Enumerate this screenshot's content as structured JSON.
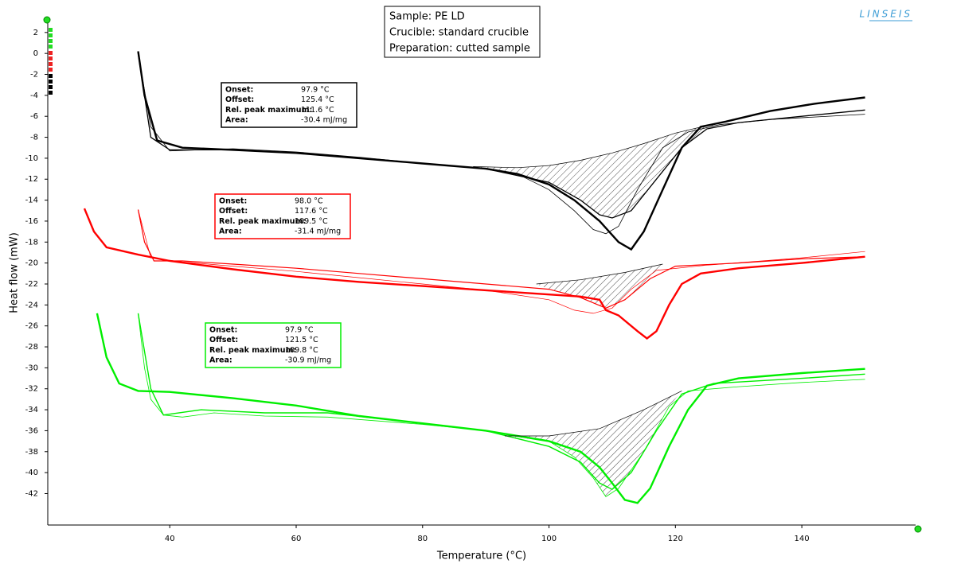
{
  "chart_data": {
    "type": "line",
    "brand": "LINSEIS",
    "sample_box": [
      "Sample: PE LD",
      "Crucible: standard crucible",
      "Preparation: cutted sample"
    ],
    "xlabel": "Temperature (°C)",
    "ylabel": "Heat flow (mW)",
    "xlim": [
      20.7,
      158
    ],
    "ylim": [
      -45,
      3.2
    ],
    "xticks": [
      40,
      60,
      80,
      100,
      120,
      140
    ],
    "yticks": [
      2,
      0,
      -2,
      -4,
      -6,
      -8,
      -10,
      -12,
      -14,
      -16,
      -18,
      -20,
      -22,
      -24,
      -26,
      -28,
      -30,
      -32,
      -34,
      -36,
      -38,
      -40,
      -42
    ],
    "series": [
      {
        "color": "#000000",
        "width": 2.4,
        "x": [
          35,
          36,
          38,
          42,
          50,
          60,
          70,
          80,
          90,
          95,
          100,
          104,
          108,
          111,
          113,
          115,
          118,
          121,
          124,
          128,
          135,
          142,
          150
        ],
        "values": [
          0.2,
          -4,
          -8.3,
          -9,
          -9.2,
          -9.5,
          -10,
          -10.5,
          -11,
          -11.5,
          -12.5,
          -14,
          -16,
          -18,
          -18.7,
          -17,
          -13,
          -9,
          -7,
          -6.5,
          -5.5,
          -4.8,
          -4.2
        ]
      },
      {
        "color": "#000000",
        "width": 0.8,
        "x": [
          35,
          37,
          40,
          50,
          60,
          70,
          80,
          90,
          95,
          100,
          104,
          107,
          109,
          111,
          114,
          118,
          122,
          127,
          135,
          150
        ],
        "values": [
          0,
          -7,
          -9.3,
          -9.1,
          -9.4,
          -9.9,
          -10.5,
          -11,
          -11.5,
          -13,
          -15,
          -16.8,
          -17.2,
          -16.5,
          -13,
          -9,
          -7.5,
          -6.8,
          -6.3,
          -5.8
        ]
      },
      {
        "color": "#000000",
        "width": 1.3,
        "x": [
          35,
          37,
          40,
          50,
          60,
          70,
          80,
          90,
          100,
          105,
          108,
          110,
          113,
          117,
          121,
          125,
          130,
          140,
          150
        ],
        "values": [
          0,
          -8,
          -9.2,
          -9.2,
          -9.5,
          -10,
          -10.5,
          -11,
          -12.3,
          -14,
          -15.4,
          -15.7,
          -15,
          -12,
          -9,
          -7.2,
          -6.6,
          -6,
          -5.4
        ]
      },
      {
        "color": "#000000",
        "width": 0.7,
        "hatch_with": 2,
        "x": [
          88,
          95,
          100,
          105,
          110,
          115,
          120,
          127
        ],
        "values": [
          -10.8,
          -10.9,
          -10.7,
          -10.2,
          -9.5,
          -8.6,
          -7.6,
          -6.6
        ]
      },
      {
        "color": "#ff0000",
        "width": 2.4,
        "x": [
          26.5,
          28,
          30,
          35,
          40,
          50,
          60,
          70,
          80,
          90,
          100,
          105,
          108,
          109,
          111,
          114,
          115.5,
          117,
          119,
          121,
          124,
          130,
          140,
          150
        ],
        "values": [
          -14.8,
          -17,
          -18.5,
          -19.2,
          -19.8,
          -20.6,
          -21.3,
          -21.8,
          -22.2,
          -22.6,
          -23,
          -23.2,
          -23.5,
          -24.5,
          -25,
          -26.5,
          -27.2,
          -26.5,
          -24,
          -22,
          -21,
          -20.5,
          -20,
          -19.4
        ]
      },
      {
        "color": "#ff0000",
        "width": 1.2,
        "x": [
          35,
          36,
          37.5,
          42,
          50,
          60,
          70,
          80,
          90,
          100,
          105,
          109,
          112,
          116,
          120,
          130,
          140,
          150
        ],
        "values": [
          -14.9,
          -18,
          -19.8,
          -19.8,
          -20.1,
          -20.5,
          -21,
          -21.5,
          -22,
          -22.5,
          -23.3,
          -24.3,
          -23.5,
          -21.5,
          -20.3,
          -20,
          -19.6,
          -19.4
        ]
      },
      {
        "color": "#ff0000",
        "width": 0.7,
        "x": [
          35,
          37,
          42,
          50,
          60,
          70,
          80,
          90,
          100,
          104,
          107,
          110,
          113,
          117,
          125,
          140,
          150
        ],
        "values": [
          -14.9,
          -19.5,
          -19.9,
          -20.3,
          -20.8,
          -21.4,
          -22,
          -22.6,
          -23.5,
          -24.5,
          -24.8,
          -24.3,
          -22.5,
          -20.7,
          -20.2,
          -19.5,
          -18.9
        ]
      },
      {
        "color": "#000000",
        "width": 0.7,
        "hatch_with": 5,
        "x": [
          98,
          105,
          112,
          118
        ],
        "values": [
          -22,
          -21.6,
          -20.9,
          -20.1
        ]
      },
      {
        "color": "#00ee00",
        "width": 2.4,
        "x": [
          28.5,
          30,
          32,
          35,
          40,
          50,
          60,
          70,
          80,
          90,
          100,
          105,
          108,
          110,
          112,
          114,
          116,
          119,
          122,
          125,
          130,
          140,
          150
        ],
        "values": [
          -24.8,
          -29,
          -31.5,
          -32.2,
          -32.3,
          -32.9,
          -33.6,
          -34.6,
          -35.3,
          -36,
          -37,
          -38,
          -39.5,
          -41,
          -42.6,
          -42.9,
          -41.5,
          -37.5,
          -34,
          -31.7,
          -31,
          -30.5,
          -30.1
        ]
      },
      {
        "color": "#00ee00",
        "width": 0.8,
        "x": [
          35,
          36,
          37,
          39,
          42,
          47,
          55,
          65,
          80,
          90,
          100,
          104,
          107,
          109,
          111,
          115,
          119,
          122,
          130,
          140,
          150
        ],
        "values": [
          -24.8,
          -30,
          -33,
          -34.5,
          -34.7,
          -34.3,
          -34.6,
          -34.7,
          -35.4,
          -36,
          -37,
          -38.5,
          -40.5,
          -42.3,
          -41.5,
          -38,
          -33.7,
          -32.2,
          -31.8,
          -31.4,
          -31.1
        ]
      },
      {
        "color": "#00ee00",
        "width": 1.4,
        "x": [
          35,
          37,
          39,
          45,
          55,
          65,
          80,
          90,
          100,
          105,
          108,
          110,
          113,
          117,
          121,
          126,
          140,
          150
        ],
        "values": [
          -24.8,
          -32,
          -34.5,
          -34,
          -34.3,
          -34.3,
          -35.3,
          -36,
          -37.5,
          -39,
          -41,
          -41.6,
          -40,
          -36,
          -32.5,
          -31.5,
          -31,
          -30.6
        ]
      },
      {
        "color": "#000000",
        "width": 0.7,
        "hatch_with": 9,
        "x": [
          93,
          100,
          108,
          115,
          121
        ],
        "values": [
          -36.5,
          -36.5,
          -35.8,
          -34,
          -32.2
        ]
      }
    ],
    "annotations": [
      {
        "color": "#000000",
        "rows": [
          [
            "Onset:",
            "97.9 °C"
          ],
          [
            "Offset:",
            "125.4 °C"
          ],
          [
            "Rel. peak maximum:",
            "111.6 °C"
          ],
          [
            "Area:",
            "-30.4 mJ/mg"
          ]
        ]
      },
      {
        "color": "#ff0000",
        "rows": [
          [
            "Onset:",
            "98.0 °C"
          ],
          [
            "Offset:",
            "117.6 °C"
          ],
          [
            "Rel. peak maximum:",
            "109.5 °C"
          ],
          [
            "Area:",
            "-31.4 mJ/mg"
          ]
        ]
      },
      {
        "color": "#00ee00",
        "rows": [
          [
            "Onset:",
            "97.9 °C"
          ],
          [
            "Offset:",
            "121.5 °C"
          ],
          [
            "Rel. peak maximum:",
            "109.8 °C"
          ],
          [
            "Area:",
            "-30.9 mJ/mg"
          ]
        ]
      }
    ]
  }
}
